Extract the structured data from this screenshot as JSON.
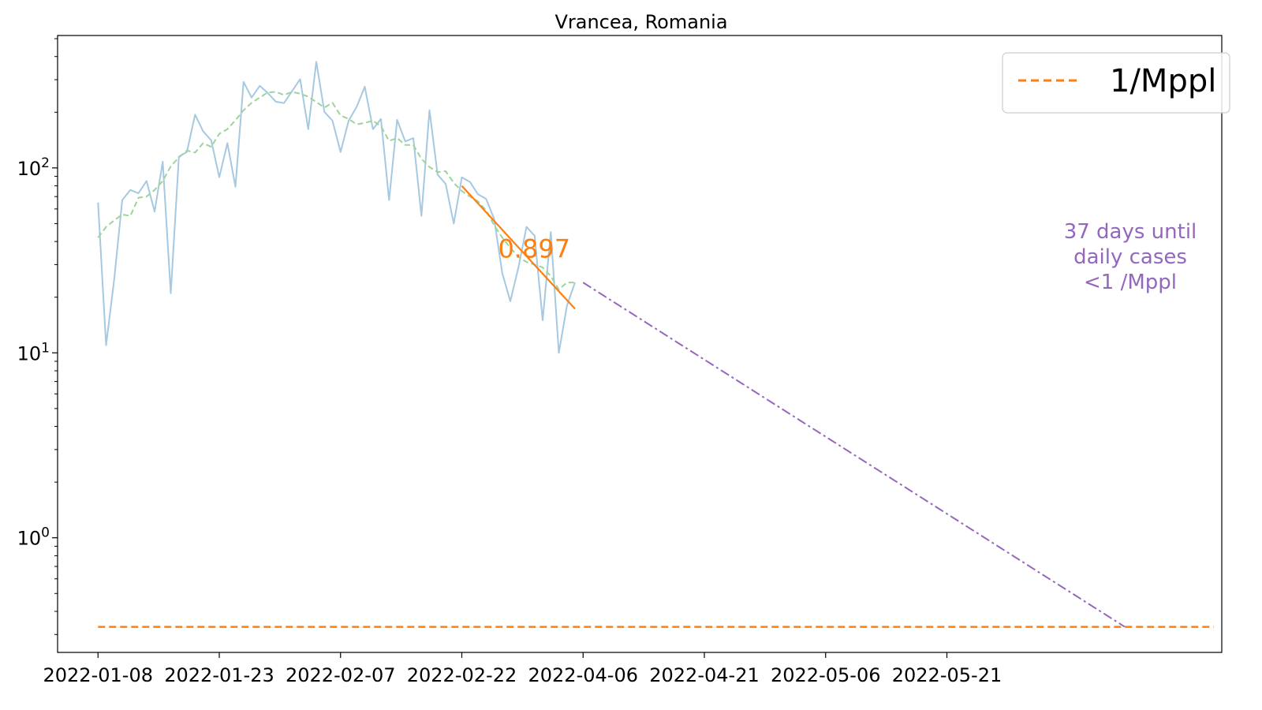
{
  "chart_data": {
    "type": "line",
    "title": "Vrancea, Romania",
    "xlabel": "",
    "ylabel": "",
    "yscale": "log",
    "ylim": [
      0.24,
      520
    ],
    "xlim": [
      "2022-01-03",
      "2022-05-27"
    ],
    "x_tick_labels": [
      "2022-01-08",
      "2022-01-23",
      "2022-02-07",
      "2022-02-22",
      "2022-04-06",
      "2022-04-21",
      "2022-05-06",
      "2022-05-21"
    ],
    "y_ticks": [
      {
        "base": "10",
        "exp": "0",
        "value": 1
      },
      {
        "base": "10",
        "exp": "1",
        "value": 10
      },
      {
        "base": "10",
        "exp": "2",
        "value": 100
      }
    ],
    "grid": false,
    "legend": {
      "placement": "top-right",
      "entries": [
        {
          "label": "1/Mppl",
          "color": "#ff7f0e",
          "style": "dashed"
        }
      ]
    },
    "start_date": "2022-01-08",
    "series": [
      {
        "style": "solid",
        "color": "#a6c8e0",
        "values": [
          65,
          11,
          25,
          67,
          76,
          73,
          85,
          58,
          108,
          21,
          115,
          122,
          194,
          158,
          141,
          89,
          136,
          79,
          292,
          240,
          278,
          254,
          228,
          224,
          260,
          302,
          162,
          375,
          201,
          180,
          122,
          180,
          214,
          275,
          162,
          184,
          67,
          182,
          139,
          145,
          55,
          205,
          92,
          82,
          50,
          89,
          84,
          72,
          68,
          53,
          27,
          19,
          29,
          48,
          43,
          15,
          45,
          10,
          18,
          24
        ]
      },
      {
        "style": "dashed",
        "color": "#9fd39a",
        "values": [
          42,
          48,
          52,
          56,
          55,
          69,
          70,
          76,
          85,
          102,
          114,
          124,
          121,
          136,
          130,
          153,
          162,
          181,
          205,
          225,
          240,
          256,
          258,
          248,
          258,
          252,
          243,
          227,
          212,
          225,
          192,
          184,
          172,
          175,
          180,
          168,
          140,
          145,
          133,
          133,
          112,
          101,
          95,
          96,
          83,
          75,
          70,
          66,
          59,
          49,
          42,
          37,
          33,
          31,
          30,
          29,
          26,
          22,
          24,
          24
        ]
      }
    ],
    "fit_line": {
      "color": "#ff7f0e",
      "label": "0.897",
      "start": {
        "x": "2022-02-22",
        "y": 80
      },
      "end": {
        "x": "2022-03-08",
        "y": 17.3
      }
    },
    "projection": {
      "color": "#9467bd",
      "start": {
        "x": "2022-03-09",
        "y": 24
      },
      "end": {
        "x": "2022-05-15",
        "y": 0.33
      }
    },
    "threshold": {
      "color": "#ff7f0e",
      "value": 0.33,
      "from": "2022-01-08",
      "to": "2022-05-26"
    },
    "annotation": {
      "color": "#9467bd",
      "lines": [
        "37 days until",
        "daily cases",
        "<1 /Mppl"
      ]
    }
  }
}
